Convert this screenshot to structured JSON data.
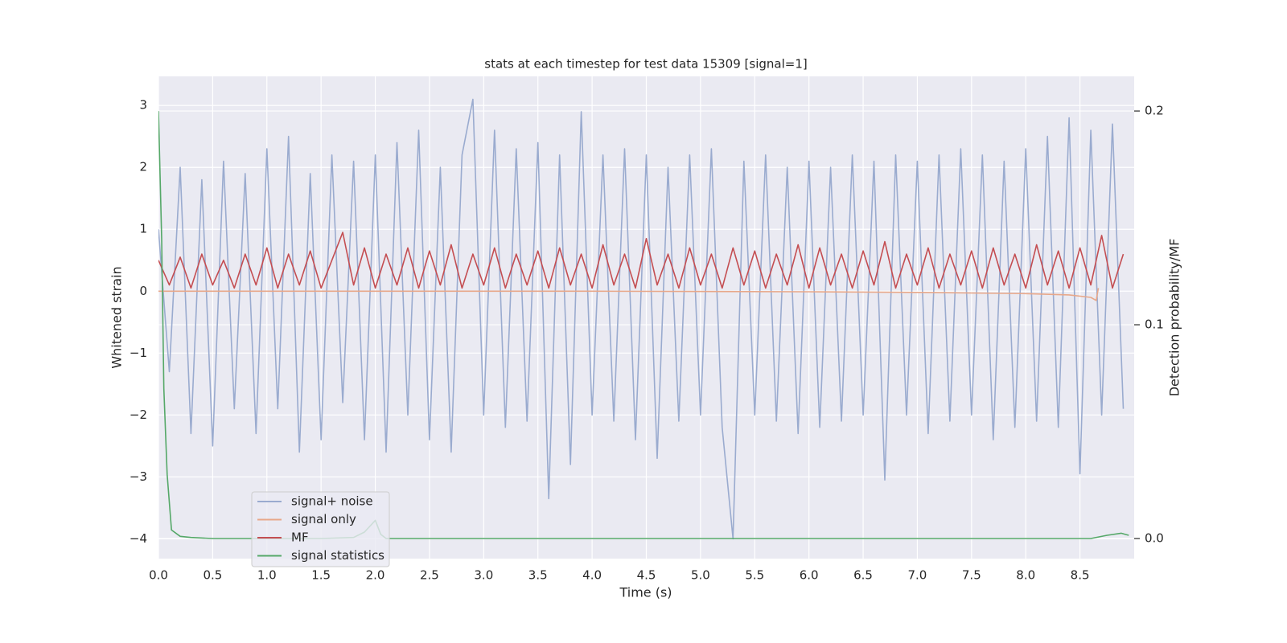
{
  "chart_data": {
    "type": "line",
    "title": "stats at each timestep for test data 15309 [signal=1]",
    "xlabel": "Time (s)",
    "ylabel": "Whitened strain",
    "y2label": "Detection probability/MF",
    "xlim": [
      0,
      9.0
    ],
    "ylim": [
      -4.32,
      3.47
    ],
    "y2lim": [
      -0.0094,
      0.2162
    ],
    "xticks": [
      {
        "value": 0,
        "label": "0.0"
      },
      0.5,
      {
        "value": 1,
        "label": "1.0"
      },
      1.5,
      {
        "value": 2,
        "label": "2.0"
      },
      2.5,
      {
        "value": 3,
        "label": "3.0"
      },
      3.5,
      {
        "value": 4,
        "label": "4.0"
      },
      4.5,
      {
        "value": 5,
        "label": "5.0"
      },
      5.5,
      {
        "value": 6,
        "label": "6.0"
      },
      6.5,
      {
        "value": 7,
        "label": "7.0"
      },
      7.5,
      {
        "value": 8,
        "label": "8.0"
      },
      8.5
    ],
    "yticks": [
      {
        "value": -4,
        "label": "−4"
      },
      {
        "value": -3,
        "label": "−3"
      },
      {
        "value": -2,
        "label": "−2"
      },
      {
        "value": -1,
        "label": "−1"
      },
      0,
      1,
      2,
      3
    ],
    "y2ticks": [
      {
        "value": 0,
        "label": "0.0"
      },
      0.1,
      0.2
    ],
    "grid": true,
    "legend": "lower left",
    "x": [
      0.0,
      0.1,
      0.2,
      0.3,
      0.4,
      0.5,
      0.6,
      0.7,
      0.8,
      0.9,
      1.0,
      1.1,
      1.2,
      1.3,
      1.4,
      1.5,
      1.6,
      1.7,
      1.8,
      1.9,
      2.0,
      2.1,
      2.2,
      2.3,
      2.4,
      2.5,
      2.6,
      2.7,
      2.8,
      2.9,
      3.0,
      3.1,
      3.2,
      3.3,
      3.4,
      3.5,
      3.6,
      3.7,
      3.8,
      3.9,
      4.0,
      4.1,
      4.2,
      4.3,
      4.4,
      4.5,
      4.6,
      4.7,
      4.8,
      4.9,
      5.0,
      5.1,
      5.2,
      5.3,
      5.4,
      5.5,
      5.6,
      5.7,
      5.8,
      5.9,
      6.0,
      6.1,
      6.2,
      6.3,
      6.4,
      6.5,
      6.6,
      6.7,
      6.8,
      6.9,
      7.0,
      7.1,
      7.2,
      7.3,
      7.4,
      7.5,
      7.6,
      7.7,
      7.8,
      7.9,
      8.0,
      8.1,
      8.2,
      8.3,
      8.4,
      8.5,
      8.6,
      8.7,
      8.8,
      8.9
    ],
    "series": [
      {
        "name": "signal+ noise",
        "color": "#9aabcf",
        "values": [
          1.0,
          -1.3,
          2.0,
          -2.3,
          1.8,
          -2.5,
          2.1,
          -1.9,
          1.9,
          -2.3,
          2.3,
          -1.9,
          2.5,
          -2.6,
          1.9,
          -2.4,
          2.2,
          -1.8,
          2.1,
          -2.4,
          2.2,
          -2.6,
          2.4,
          -2.0,
          2.6,
          -2.4,
          2.0,
          -2.6,
          2.2,
          3.1,
          -2.0,
          2.6,
          -2.2,
          2.3,
          -2.1,
          2.4,
          -3.35,
          2.2,
          -2.8,
          2.9,
          -2.0,
          2.2,
          -2.1,
          2.3,
          -2.4,
          2.2,
          -2.7,
          2.0,
          -2.1,
          2.2,
          -2.0,
          2.3,
          -2.2,
          -4.0,
          2.1,
          -2.0,
          2.2,
          -2.1,
          2.0,
          -2.3,
          2.1,
          -2.2,
          2.0,
          -2.1,
          2.2,
          -2.0,
          2.1,
          -3.05,
          2.2,
          -2.0,
          2.1,
          -2.3,
          2.2,
          -2.1,
          2.3,
          -2.0,
          2.2,
          -2.4,
          2.1,
          -2.2,
          2.3,
          -2.1,
          2.5,
          -2.2,
          2.8,
          -2.95,
          2.6,
          -2.0,
          2.7,
          -1.9
        ]
      },
      {
        "name": "signal only",
        "color": "#e8a88a",
        "x": [
          0,
          2,
          4,
          6,
          7,
          8,
          8.4,
          8.6,
          8.65,
          8.67
        ],
        "values": [
          0,
          0,
          0,
          -0.01,
          -0.02,
          -0.04,
          -0.06,
          -0.1,
          -0.15,
          0.05
        ]
      },
      {
        "name": "MF",
        "color": "#c44e52",
        "values": [
          0.5,
          0.1,
          0.55,
          0.05,
          0.6,
          0.1,
          0.5,
          0.05,
          0.6,
          0.1,
          0.7,
          0.05,
          0.6,
          0.1,
          0.65,
          0.05,
          0.5,
          0.95,
          0.1,
          0.7,
          0.05,
          0.6,
          0.1,
          0.7,
          0.05,
          0.65,
          0.1,
          0.75,
          0.05,
          0.6,
          0.1,
          0.7,
          0.05,
          0.6,
          0.1,
          0.65,
          0.05,
          0.7,
          0.1,
          0.6,
          0.05,
          0.75,
          0.1,
          0.6,
          0.05,
          0.85,
          0.1,
          0.6,
          0.05,
          0.7,
          0.1,
          0.6,
          0.05,
          0.7,
          0.1,
          0.65,
          0.05,
          0.6,
          0.1,
          0.75,
          0.05,
          0.7,
          0.1,
          0.6,
          0.05,
          0.65,
          0.1,
          0.8,
          0.05,
          0.6,
          0.1,
          0.7,
          0.05,
          0.6,
          0.1,
          0.65,
          0.05,
          0.7,
          0.1,
          0.6,
          0.05,
          0.75,
          0.1,
          0.65,
          0.05,
          0.7,
          0.1,
          0.9,
          0.05,
          0.6
        ]
      },
      {
        "name": "signal statistics",
        "color": "#55a868",
        "axis": "y2",
        "x": [
          0,
          0.03,
          0.05,
          0.08,
          0.12,
          0.2,
          0.3,
          0.5,
          1.0,
          1.5,
          1.8,
          1.9,
          2.0,
          2.05,
          2.1,
          2.5,
          5,
          8,
          8.6,
          8.75,
          8.88,
          8.95
        ],
        "values": [
          0.2,
          0.14,
          0.07,
          0.03,
          0.004,
          0.001,
          0.0005,
          0,
          0,
          0,
          0.0005,
          0.003,
          0.0085,
          0.002,
          0,
          0,
          0,
          0,
          0,
          0.0015,
          0.0025,
          0.0015
        ]
      }
    ]
  }
}
